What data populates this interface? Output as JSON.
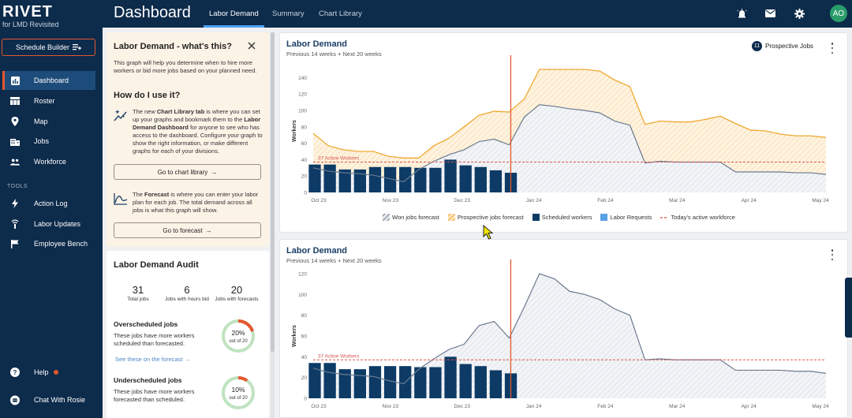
{
  "brand": {
    "title": "RIVET",
    "subtitle": "for LMD Revisited"
  },
  "sidebar": {
    "schedule_builder": "Schedule Builder",
    "items": [
      {
        "label": "Dashboard",
        "icon": "chart-icon",
        "active": true
      },
      {
        "label": "Roster",
        "icon": "table-icon"
      },
      {
        "label": "Map",
        "icon": "map-pin-icon"
      },
      {
        "label": "Jobs",
        "icon": "building-icon"
      },
      {
        "label": "Workforce",
        "icon": "people-icon"
      }
    ],
    "tools_label": "TOOLS",
    "tools": [
      {
        "label": "Action Log",
        "icon": "bolt-icon"
      },
      {
        "label": "Labor Updates",
        "icon": "signal-icon"
      },
      {
        "label": "Employee Bench",
        "icon": "flag-icon"
      }
    ],
    "help": "Help",
    "chat": "Chat With Rosie"
  },
  "topbar": {
    "title": "Dashboard",
    "tabs": [
      "Labor Demand",
      "Summary",
      "Chart Library"
    ],
    "avatar": "AO"
  },
  "info": {
    "title": "Labor Demand - what's this?",
    "intro": "This graph will help you determine when to hire more workers or bid more jobs based on your planned need.",
    "how_title": "How do I use it?",
    "chart_lib_text_pre": "The new ",
    "chart_lib_bold": "Chart Library tab",
    "chart_lib_text_mid": " is where you can set up your graphs and bookmark them to the ",
    "chart_lib_bold2": "Labor Demand Dashboard",
    "chart_lib_text_post": " for anyone to see who has access to the dashboard. Configure your graph to show the right information, or make different graphs for each of your divisions.",
    "go_chart_library": "Go to chart library",
    "forecast_pre": "The ",
    "forecast_bold": "Forecast",
    "forecast_post": " is where you can enter your labor plan for each job. The total demand across all jobs is what this graph will show.",
    "go_forecast": "Go to forecast"
  },
  "audit": {
    "title": "Labor Demand Audit",
    "stats": [
      {
        "value": "31",
        "label": "Total jobs"
      },
      {
        "value": "6",
        "label": "Jobs with hours bid"
      },
      {
        "value": "20",
        "label": "Jobs with forecasts"
      }
    ],
    "over": {
      "title": "Overscheduled jobs",
      "desc": "These jobs have more workers scheduled than forecasted.",
      "link": "See these on the forecast",
      "pct": "20%",
      "out_of": "out of 20",
      "fraction": 0.2
    },
    "under": {
      "title": "Underscheduled jobs",
      "desc": "These jobs have more workers forecasted than scheduled.",
      "pct": "10%",
      "out_of": "out of 20",
      "fraction": 0.1
    }
  },
  "colors": {
    "navy": "#0d2b4b",
    "accent": "#e4572e",
    "won": "#9aa4b3",
    "prospective": "#f0a830",
    "scheduled": "#0d3b66",
    "requests": "#5aa0e6",
    "active_line": "#d9534f"
  },
  "chart_data": [
    {
      "type": "area",
      "title": "Labor Demand",
      "subtitle": "Previous 14 weeks + Next 20 weeks",
      "prospective_jobs_count": "11",
      "prospective_jobs_label": "Prospective Jobs",
      "ylabel": "Workers",
      "ylim": [
        0,
        150
      ],
      "yticks": [
        0,
        20,
        40,
        60,
        80,
        100,
        120,
        140
      ],
      "xticks": [
        "Oct 23",
        "Nov 23",
        "Dec 23",
        "Jan 24",
        "Feb 24",
        "Mar 24",
        "Apr 24",
        "May 24"
      ],
      "active_workers": 37,
      "active_label": "37 Active Workers",
      "today_index": 13.1,
      "won": [
        30,
        26,
        24,
        23,
        21,
        17,
        13,
        28,
        38,
        46,
        52,
        62,
        65,
        58,
        92,
        107,
        105,
        102,
        100,
        97,
        87,
        82,
        36,
        38,
        37,
        37,
        37,
        37,
        25,
        25,
        25,
        25,
        24,
        24,
        22
      ],
      "prospective_top": [
        72,
        57,
        52,
        50,
        50,
        44,
        42,
        42,
        57,
        66,
        80,
        94,
        99,
        98,
        114,
        152,
        154,
        152,
        151,
        148,
        137,
        129,
        83,
        87,
        86,
        86,
        89,
        93,
        84,
        76,
        75,
        71,
        69,
        69,
        67
      ],
      "scheduled": [
        34,
        34,
        28,
        28,
        31,
        31,
        31,
        30,
        30,
        40,
        33,
        31,
        27,
        24
      ],
      "legend": [
        "Won jobs forecast",
        "Prospective jobs forecast",
        "Scheduled workers",
        "Labor Requests",
        "Today's active workforce"
      ]
    },
    {
      "type": "area",
      "title": "Labor Demand",
      "subtitle": "Previous 14 weeks + Next 20 weeks",
      "ylabel": "Workers",
      "ylim": [
        0,
        120
      ],
      "yticks": [
        0,
        20,
        40,
        60,
        80,
        100,
        120
      ],
      "xticks": [
        "Oct 23",
        "Nov 23",
        "Dec 23",
        "Jan 24",
        "Feb 24",
        "Mar 24",
        "Apr 24",
        "May 24"
      ],
      "active_workers": 37,
      "active_label": "37 Active Workers",
      "today_index": 13.1,
      "won": [
        29,
        25,
        23,
        22,
        21,
        17,
        14,
        28,
        38,
        47,
        52,
        70,
        74,
        58,
        88,
        120,
        115,
        103,
        100,
        95,
        86,
        80,
        37,
        38,
        37,
        37,
        37,
        37,
        27,
        27,
        27,
        27,
        26,
        26,
        24
      ],
      "scheduled": [
        34,
        34,
        28,
        28,
        31,
        31,
        31,
        30,
        30,
        40,
        33,
        31,
        27,
        24
      ]
    }
  ]
}
